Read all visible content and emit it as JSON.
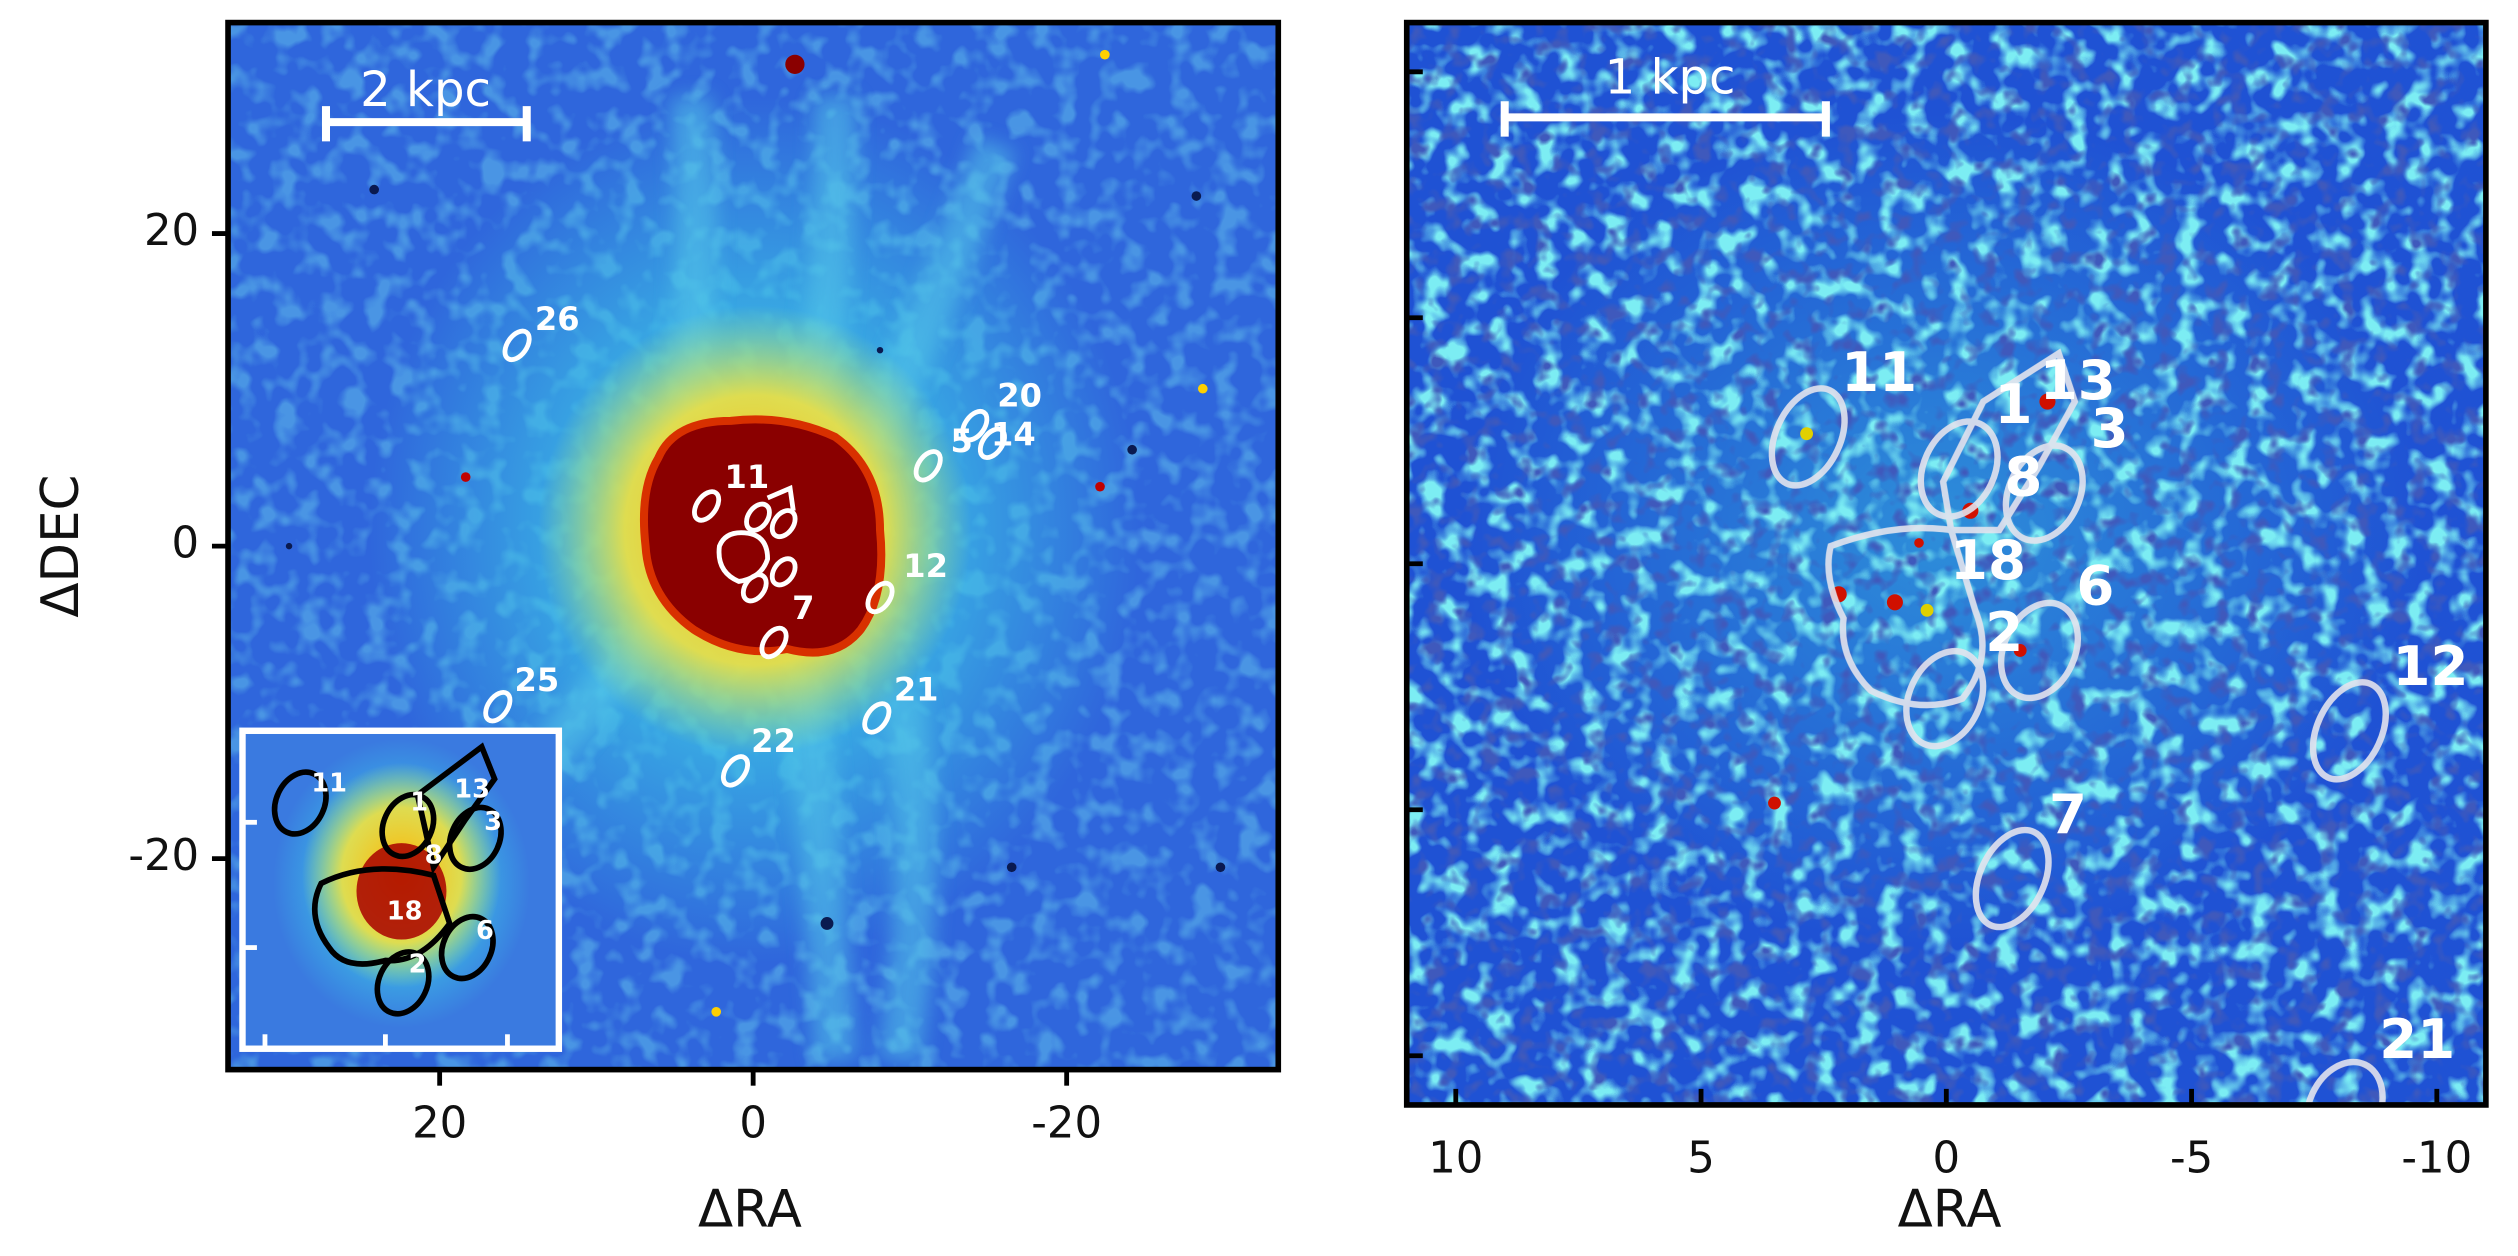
{
  "chart_data": [
    {
      "type": "image",
      "xlabel": "ΔRA",
      "ylabel": "ΔDEC",
      "xlim": [
        33.5,
        -33.5
      ],
      "ylim": [
        -33.5,
        33.5
      ],
      "xticks": [
        20,
        0,
        -20
      ],
      "yticks": [
        -20,
        0,
        20
      ],
      "scale_bar": "2 kpc",
      "annotations": [
        {
          "text": "26",
          "x": 12.5,
          "y": 14.4
        },
        {
          "text": "5",
          "x": -13.3,
          "y": 6.6
        },
        {
          "text": "20",
          "x": -17,
          "y": 9.5
        },
        {
          "text": "14",
          "x": -16.6,
          "y": 7
        },
        {
          "text": "11",
          "x": 0.4,
          "y": 4.3
        },
        {
          "text": "12",
          "x": -11,
          "y": -1.4
        },
        {
          "text": "7",
          "x": -3.2,
          "y": -4.1
        },
        {
          "text": "25",
          "x": 13.8,
          "y": -8.7
        },
        {
          "text": "21",
          "x": -10.4,
          "y": -9.3
        },
        {
          "text": "22",
          "x": -1.3,
          "y": -12.6
        }
      ],
      "inset": {
        "annotations": [
          "11",
          "1",
          "13",
          "3",
          "8",
          "18",
          "6",
          "2"
        ]
      }
    },
    {
      "type": "image",
      "xlabel": "ΔRA",
      "xlim": [
        11,
        -11
      ],
      "ylim": [
        -11,
        11
      ],
      "xticks": [
        10,
        5,
        0,
        -5,
        -10
      ],
      "yticks": [
        -10,
        -5,
        0,
        5,
        10
      ],
      "ytick_labels": false,
      "scale_bar": "1 kpc",
      "annotations": [
        {
          "text": "11",
          "x": 1.37,
          "y": 3.82
        },
        {
          "text": "1",
          "x": -1.37,
          "y": 3.17
        },
        {
          "text": "13",
          "x": -2.68,
          "y": 3.66
        },
        {
          "text": "3",
          "x": -3.33,
          "y": 2.68
        },
        {
          "text": "8",
          "x": -1.57,
          "y": 1.7
        },
        {
          "text": "18",
          "x": -0.85,
          "y": 0
        },
        {
          "text": "6",
          "x": -3.04,
          "y": -0.52
        },
        {
          "text": "2",
          "x": -1.18,
          "y": -1.47
        },
        {
          "text": "12",
          "x": -9.87,
          "y": -2.16
        },
        {
          "text": "7",
          "x": -2.48,
          "y": -5.16
        },
        {
          "text": "21",
          "x": -9.6,
          "y": -9.74
        }
      ]
    }
  ]
}
